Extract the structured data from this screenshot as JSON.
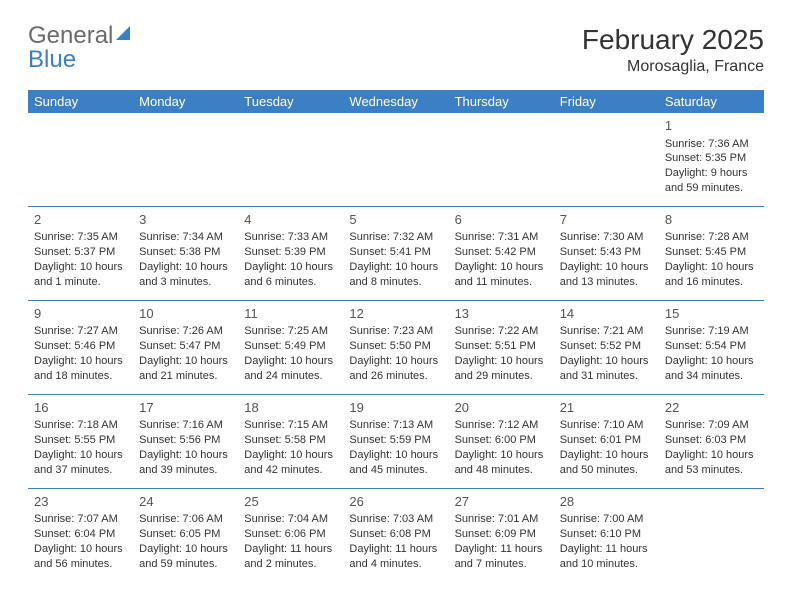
{
  "logo": {
    "word1": "General",
    "word2": "Blue",
    "text_color": "#6b6b6b",
    "accent_color": "#3b7fc4"
  },
  "title": "February 2025",
  "location": "Morosaglia, France",
  "colors": {
    "header_bg": "#3b7fc4",
    "header_text": "#ffffff",
    "cell_border": "#3b7fc4",
    "body_text": "#333333"
  },
  "weekdays": [
    "Sunday",
    "Monday",
    "Tuesday",
    "Wednesday",
    "Thursday",
    "Friday",
    "Saturday"
  ],
  "weeks": [
    [
      null,
      null,
      null,
      null,
      null,
      null,
      {
        "n": "1",
        "sunrise": "Sunrise: 7:36 AM",
        "sunset": "Sunset: 5:35 PM",
        "daylight": "Daylight: 9 hours and 59 minutes."
      }
    ],
    [
      {
        "n": "2",
        "sunrise": "Sunrise: 7:35 AM",
        "sunset": "Sunset: 5:37 PM",
        "daylight": "Daylight: 10 hours and 1 minute."
      },
      {
        "n": "3",
        "sunrise": "Sunrise: 7:34 AM",
        "sunset": "Sunset: 5:38 PM",
        "daylight": "Daylight: 10 hours and 3 minutes."
      },
      {
        "n": "4",
        "sunrise": "Sunrise: 7:33 AM",
        "sunset": "Sunset: 5:39 PM",
        "daylight": "Daylight: 10 hours and 6 minutes."
      },
      {
        "n": "5",
        "sunrise": "Sunrise: 7:32 AM",
        "sunset": "Sunset: 5:41 PM",
        "daylight": "Daylight: 10 hours and 8 minutes."
      },
      {
        "n": "6",
        "sunrise": "Sunrise: 7:31 AM",
        "sunset": "Sunset: 5:42 PM",
        "daylight": "Daylight: 10 hours and 11 minutes."
      },
      {
        "n": "7",
        "sunrise": "Sunrise: 7:30 AM",
        "sunset": "Sunset: 5:43 PM",
        "daylight": "Daylight: 10 hours and 13 minutes."
      },
      {
        "n": "8",
        "sunrise": "Sunrise: 7:28 AM",
        "sunset": "Sunset: 5:45 PM",
        "daylight": "Daylight: 10 hours and 16 minutes."
      }
    ],
    [
      {
        "n": "9",
        "sunrise": "Sunrise: 7:27 AM",
        "sunset": "Sunset: 5:46 PM",
        "daylight": "Daylight: 10 hours and 18 minutes."
      },
      {
        "n": "10",
        "sunrise": "Sunrise: 7:26 AM",
        "sunset": "Sunset: 5:47 PM",
        "daylight": "Daylight: 10 hours and 21 minutes."
      },
      {
        "n": "11",
        "sunrise": "Sunrise: 7:25 AM",
        "sunset": "Sunset: 5:49 PM",
        "daylight": "Daylight: 10 hours and 24 minutes."
      },
      {
        "n": "12",
        "sunrise": "Sunrise: 7:23 AM",
        "sunset": "Sunset: 5:50 PM",
        "daylight": "Daylight: 10 hours and 26 minutes."
      },
      {
        "n": "13",
        "sunrise": "Sunrise: 7:22 AM",
        "sunset": "Sunset: 5:51 PM",
        "daylight": "Daylight: 10 hours and 29 minutes."
      },
      {
        "n": "14",
        "sunrise": "Sunrise: 7:21 AM",
        "sunset": "Sunset: 5:52 PM",
        "daylight": "Daylight: 10 hours and 31 minutes."
      },
      {
        "n": "15",
        "sunrise": "Sunrise: 7:19 AM",
        "sunset": "Sunset: 5:54 PM",
        "daylight": "Daylight: 10 hours and 34 minutes."
      }
    ],
    [
      {
        "n": "16",
        "sunrise": "Sunrise: 7:18 AM",
        "sunset": "Sunset: 5:55 PM",
        "daylight": "Daylight: 10 hours and 37 minutes."
      },
      {
        "n": "17",
        "sunrise": "Sunrise: 7:16 AM",
        "sunset": "Sunset: 5:56 PM",
        "daylight": "Daylight: 10 hours and 39 minutes."
      },
      {
        "n": "18",
        "sunrise": "Sunrise: 7:15 AM",
        "sunset": "Sunset: 5:58 PM",
        "daylight": "Daylight: 10 hours and 42 minutes."
      },
      {
        "n": "19",
        "sunrise": "Sunrise: 7:13 AM",
        "sunset": "Sunset: 5:59 PM",
        "daylight": "Daylight: 10 hours and 45 minutes."
      },
      {
        "n": "20",
        "sunrise": "Sunrise: 7:12 AM",
        "sunset": "Sunset: 6:00 PM",
        "daylight": "Daylight: 10 hours and 48 minutes."
      },
      {
        "n": "21",
        "sunrise": "Sunrise: 7:10 AM",
        "sunset": "Sunset: 6:01 PM",
        "daylight": "Daylight: 10 hours and 50 minutes."
      },
      {
        "n": "22",
        "sunrise": "Sunrise: 7:09 AM",
        "sunset": "Sunset: 6:03 PM",
        "daylight": "Daylight: 10 hours and 53 minutes."
      }
    ],
    [
      {
        "n": "23",
        "sunrise": "Sunrise: 7:07 AM",
        "sunset": "Sunset: 6:04 PM",
        "daylight": "Daylight: 10 hours and 56 minutes."
      },
      {
        "n": "24",
        "sunrise": "Sunrise: 7:06 AM",
        "sunset": "Sunset: 6:05 PM",
        "daylight": "Daylight: 10 hours and 59 minutes."
      },
      {
        "n": "25",
        "sunrise": "Sunrise: 7:04 AM",
        "sunset": "Sunset: 6:06 PM",
        "daylight": "Daylight: 11 hours and 2 minutes."
      },
      {
        "n": "26",
        "sunrise": "Sunrise: 7:03 AM",
        "sunset": "Sunset: 6:08 PM",
        "daylight": "Daylight: 11 hours and 4 minutes."
      },
      {
        "n": "27",
        "sunrise": "Sunrise: 7:01 AM",
        "sunset": "Sunset: 6:09 PM",
        "daylight": "Daylight: 11 hours and 7 minutes."
      },
      {
        "n": "28",
        "sunrise": "Sunrise: 7:00 AM",
        "sunset": "Sunset: 6:10 PM",
        "daylight": "Daylight: 11 hours and 10 minutes."
      },
      null
    ]
  ]
}
